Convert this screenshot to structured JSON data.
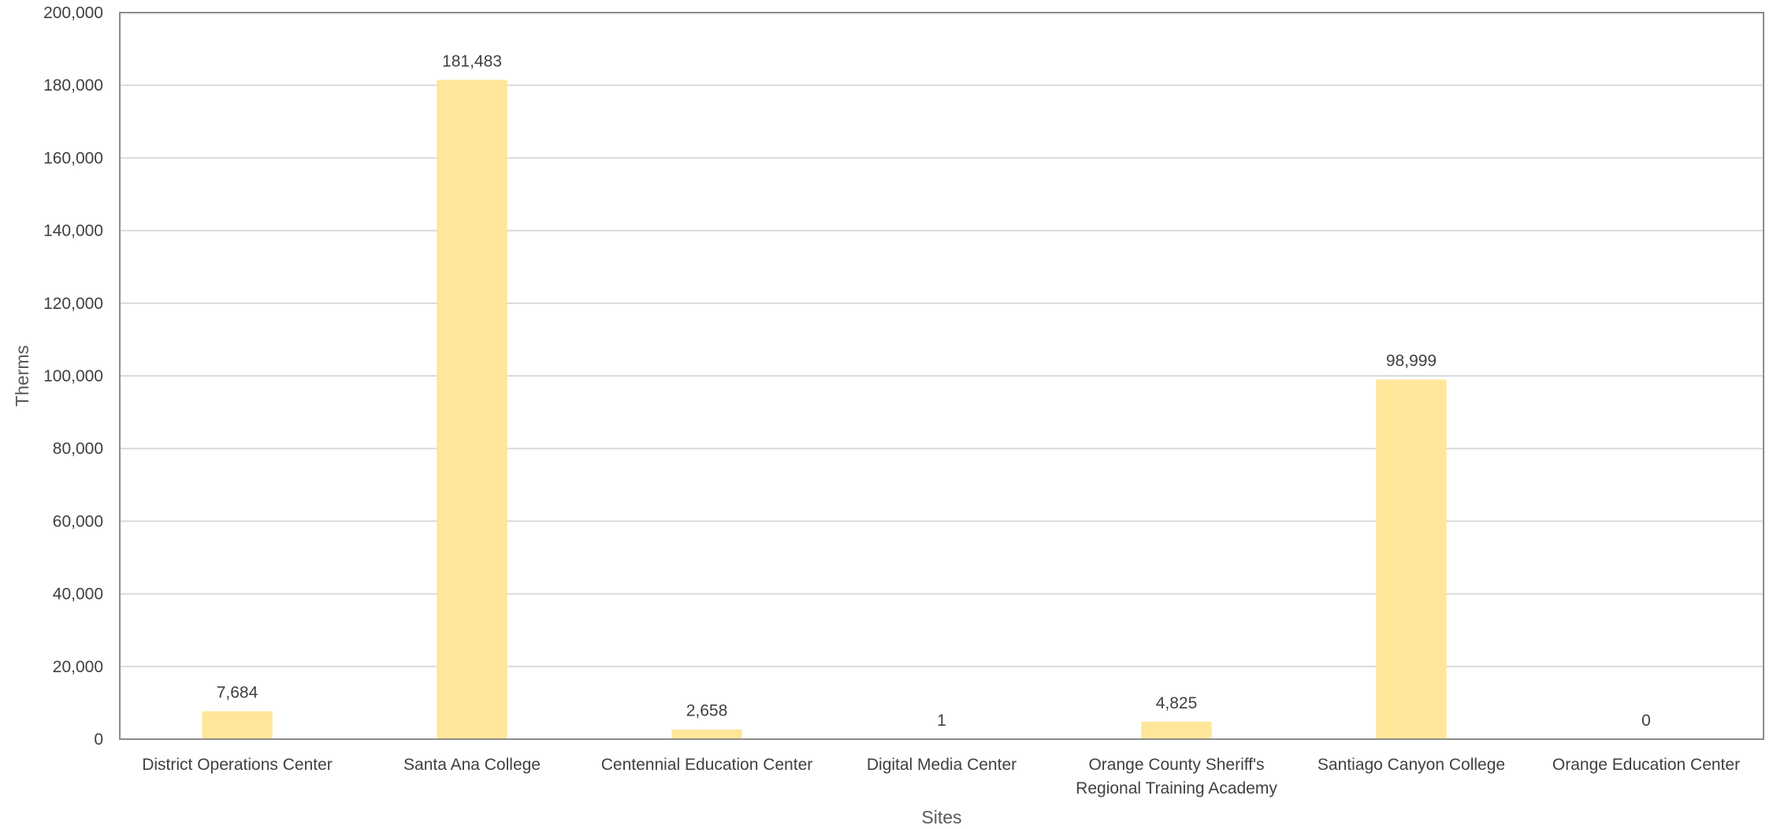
{
  "chart_data": {
    "type": "bar",
    "categories": [
      "District Operations Center",
      "Santa Ana College",
      "Centennial Education Center",
      "Digital Media Center",
      [
        "Orange County Sheriff's",
        "Regional Training Academy"
      ],
      "Santiago Canyon College",
      "Orange Education Center"
    ],
    "values": [
      7684,
      181483,
      2658,
      1,
      4825,
      98999,
      0
    ],
    "data_labels": [
      "7,684",
      "181,483",
      "2,658",
      "1",
      "4,825",
      "98,999",
      "0"
    ],
    "xlabel": "Sites",
    "ylabel": "Therms",
    "ylim": [
      0,
      200000
    ],
    "yticks": [
      0,
      20000,
      40000,
      60000,
      80000,
      100000,
      120000,
      140000,
      160000,
      180000,
      200000
    ],
    "ytick_labels": [
      "0",
      "20,000",
      "40,000",
      "60,000",
      "80,000",
      "100,000",
      "120,000",
      "140,000",
      "160,000",
      "180,000",
      "200,000"
    ],
    "grid": true,
    "legend": "none",
    "bar_color": "#FFE699"
  }
}
